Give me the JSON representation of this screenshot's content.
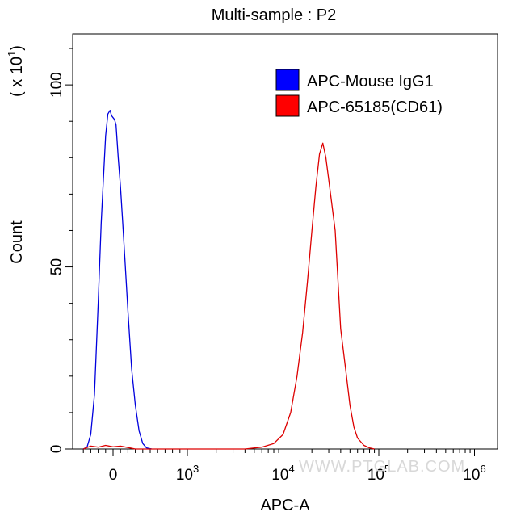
{
  "chart_data": {
    "type": "line",
    "title": "Multi-sample : P2",
    "xlabel": "APC-A",
    "ylabel": "Count",
    "y_multiplier_label": "( x 10",
    "y_multiplier_exponent": "1",
    "y_multiplier_close": ")",
    "x_scale": "biexponential",
    "x_ticks": [
      {
        "value": 0,
        "base": "0",
        "exp": ""
      },
      {
        "value": 1000,
        "base": "10",
        "exp": "3"
      },
      {
        "value": 10000,
        "base": "10",
        "exp": "4"
      },
      {
        "value": 100000,
        "base": "10",
        "exp": "5"
      },
      {
        "value": 1000000,
        "base": "10",
        "exp": "6"
      }
    ],
    "ylim": [
      0,
      1140
    ],
    "y_ticks": [
      {
        "value": 0,
        "label": "0"
      },
      {
        "value": 500,
        "label": "50"
      },
      {
        "value": 1000,
        "label": "100"
      }
    ],
    "legend_position": "top-right",
    "series": [
      {
        "name": "APC-Mouse IgG1",
        "color": "#0000dd",
        "x": [
          -400,
          -350,
          -300,
          -250,
          -200,
          -160,
          -130,
          -100,
          -70,
          -40,
          -20,
          0,
          20,
          40,
          70,
          100,
          130,
          160,
          200,
          250,
          300,
          350,
          400,
          450,
          520
        ],
        "y": [
          0,
          5,
          40,
          150,
          400,
          620,
          740,
          860,
          920,
          930,
          915,
          910,
          905,
          890,
          800,
          720,
          620,
          520,
          380,
          220,
          120,
          50,
          15,
          3,
          0
        ]
      },
      {
        "name": "APC-65185(CD61)",
        "color": "#dd0000",
        "x": [
          -400,
          -300,
          -200,
          -100,
          0,
          100,
          200,
          300,
          400,
          600,
          1000,
          2000,
          4000,
          6000,
          8000,
          10000,
          12000,
          14000,
          16000,
          18000,
          20000,
          22000,
          24000,
          26000,
          28000,
          30000,
          35000,
          40000,
          45000,
          50000,
          55000,
          60000,
          70000,
          80000,
          90000
        ],
        "y": [
          0,
          8,
          5,
          10,
          6,
          8,
          4,
          0,
          0,
          0,
          0,
          0,
          0,
          5,
          15,
          40,
          100,
          200,
          320,
          460,
          600,
          720,
          810,
          840,
          800,
          740,
          600,
          330,
          220,
          120,
          60,
          30,
          10,
          3,
          0
        ]
      }
    ]
  },
  "watermark": "WWW.PTGLAB.COM"
}
